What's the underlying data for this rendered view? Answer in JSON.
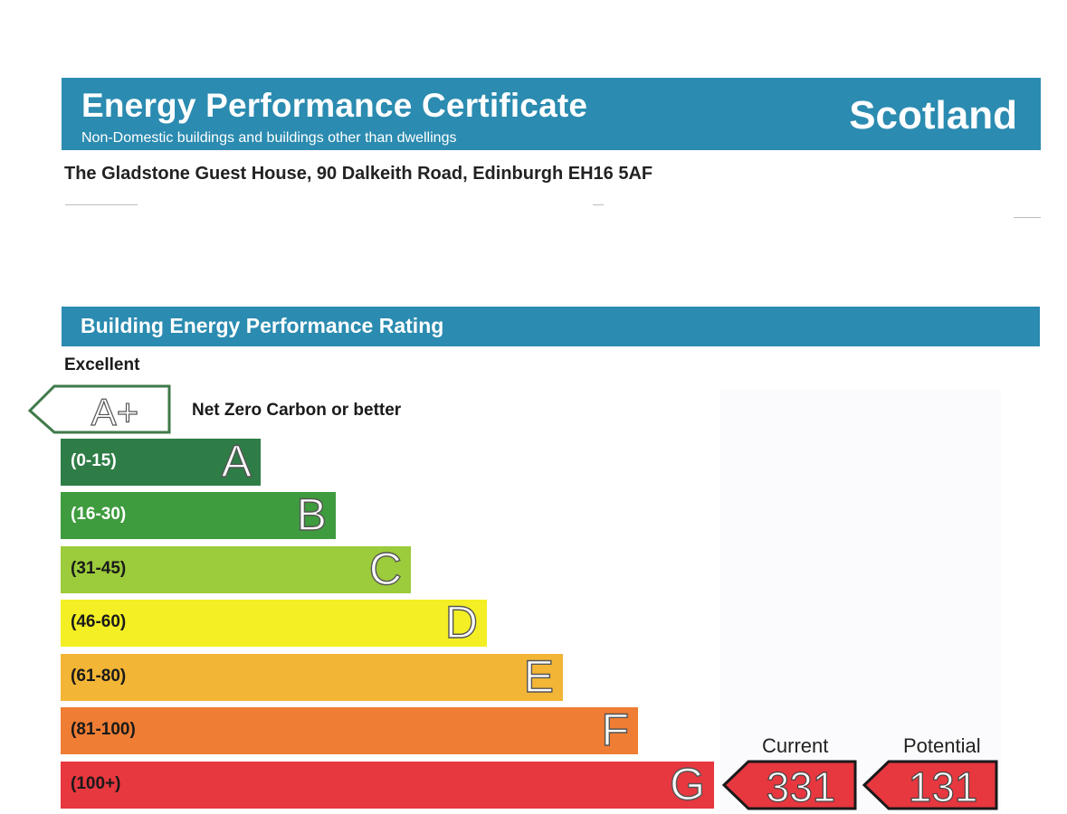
{
  "header": {
    "title": "Energy Performance Certificate",
    "subtitle": "Non-Domestic buildings and buildings other than dwellings",
    "region": "Scotland"
  },
  "address": "The Gladstone Guest House, 90 Dalkeith Road, Edinburgh EH16 5AF",
  "rating_section": {
    "title": "Building Energy Performance Rating",
    "top_label": "Excellent",
    "aplus": {
      "letter": "A+",
      "description": "Net Zero Carbon or better"
    },
    "bands": [
      {
        "letter": "A",
        "range": "(0-15)",
        "color": "#2e7d46",
        "text_color": "#ffffff"
      },
      {
        "letter": "B",
        "range": "(16-30)",
        "color": "#3e9b3e",
        "text_color": "#ffffff"
      },
      {
        "letter": "C",
        "range": "(31-45)",
        "color": "#9ccb3b",
        "text_color": "#1a1a1a"
      },
      {
        "letter": "D",
        "range": "(46-60)",
        "color": "#f3ef24",
        "text_color": "#1a1a1a"
      },
      {
        "letter": "E",
        "range": "(61-80)",
        "color": "#f2b535",
        "text_color": "#1a1a1a"
      },
      {
        "letter": "F",
        "range": "(81-100)",
        "color": "#ef7d33",
        "text_color": "#1a1a1a"
      },
      {
        "letter": "G",
        "range": "(100+)",
        "color": "#e7373f",
        "text_color": "#1a1a1a"
      }
    ],
    "current": {
      "label": "Current",
      "value": "331",
      "band": "G"
    },
    "potential": {
      "label": "Potential",
      "value": "131",
      "band": "G"
    },
    "pointer_color": "#e7373f"
  }
}
